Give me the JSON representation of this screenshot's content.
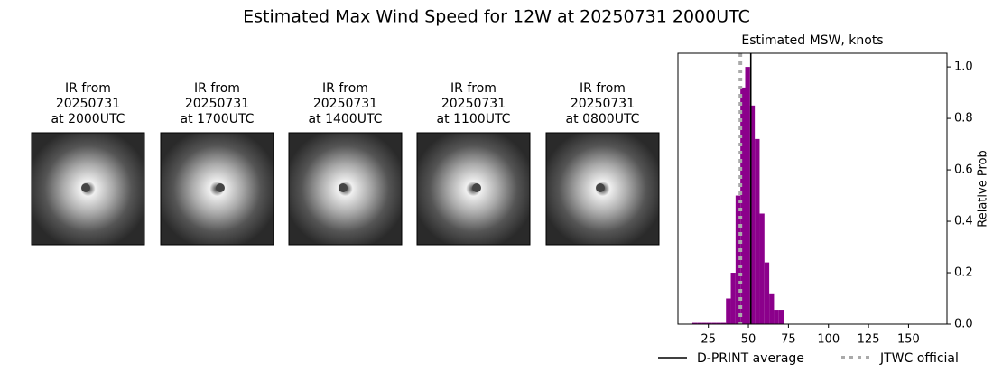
{
  "title": "Estimated Max Wind Speed for 12W at 20250731 2000UTC",
  "panels": [
    {
      "label": [
        "IR from",
        "20250731",
        "at 2000UTC"
      ]
    },
    {
      "label": [
        "IR from",
        "20250731",
        "at 1700UTC"
      ]
    },
    {
      "label": [
        "IR from",
        "20250731",
        "at 1400UTC"
      ]
    },
    {
      "label": [
        "IR from",
        "20250731",
        "at 1100UTC"
      ]
    },
    {
      "label": [
        "IR from",
        "20250731",
        "at 0800UTC"
      ]
    }
  ],
  "chart_data": {
    "type": "histogram",
    "title": "Estimated MSW, knots",
    "bins": [
      15,
      18,
      21,
      24,
      27,
      30,
      33,
      36,
      39,
      42,
      45,
      48,
      51,
      54,
      57,
      60,
      63,
      66,
      69,
      72
    ],
    "values": [
      0.005,
      0.005,
      0.005,
      0.005,
      0.005,
      0.005,
      0.005,
      0.1,
      0.2,
      0.5,
      0.92,
      1.0,
      0.85,
      0.72,
      0.43,
      0.24,
      0.12,
      0.056,
      0.056
    ],
    "color": "#8b008b",
    "xlim": [
      6,
      174
    ],
    "ylim": [
      0,
      1.053
    ],
    "xticks": [
      25,
      50,
      75,
      100,
      125,
      150
    ],
    "yticks": [
      {
        "value": 0,
        "label": "0.0"
      },
      {
        "value": 0.2,
        "label": "0.2"
      },
      {
        "value": 0.4,
        "label": "0.4"
      },
      {
        "value": 0.6,
        "label": "0.6"
      },
      {
        "value": 0.8,
        "label": "0.8"
      },
      {
        "value": 1.0,
        "label": "1.0"
      }
    ],
    "ylabel": "Relative Prob",
    "lines": [
      {
        "name": "D-PRINT average",
        "value": 51.5,
        "color": "#000000",
        "style": "solid"
      },
      {
        "name": "JTWC official",
        "value": 45,
        "color": "#aaaaaa",
        "style": "dotted"
      }
    ]
  }
}
